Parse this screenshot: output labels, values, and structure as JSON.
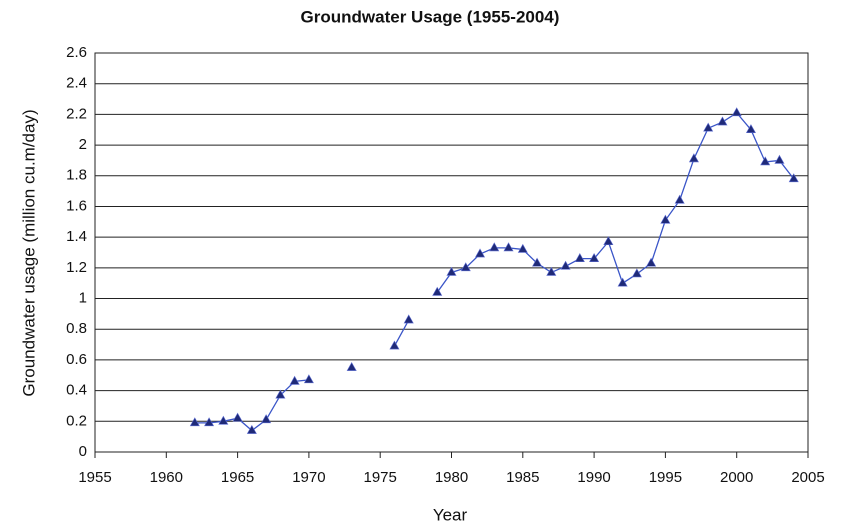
{
  "chart_data": {
    "type": "line",
    "title": "Groundwater Usage (1955-2004)",
    "x_label": "Year",
    "y_label": "Groundwater usage (million cu.m/day)",
    "x": [
      1962,
      1963,
      1964,
      1965,
      1966,
      1967,
      1968,
      1969,
      1970,
      1971,
      1972,
      1973,
      1974,
      1975,
      1976,
      1977,
      1978,
      1979,
      1980,
      1981,
      1982,
      1983,
      1984,
      1985,
      1986,
      1987,
      1988,
      1989,
      1990,
      1991,
      1992,
      1993,
      1994,
      1995,
      1996,
      1997,
      1998,
      1999,
      2000,
      2001,
      2002,
      2003,
      2004
    ],
    "series": [
      {
        "name": "Groundwater usage",
        "color": "#3a55c8",
        "marker_color": "#1f2a78",
        "values": [
          0.19,
          0.19,
          0.2,
          0.22,
          0.14,
          0.21,
          0.37,
          0.46,
          0.47,
          null,
          null,
          0.55,
          null,
          null,
          0.69,
          0.86,
          null,
          1.04,
          1.17,
          1.2,
          1.29,
          1.33,
          1.33,
          1.32,
          1.23,
          1.17,
          1.21,
          1.26,
          1.26,
          1.37,
          1.1,
          1.16,
          1.23,
          1.51,
          1.64,
          1.91,
          2.11,
          2.15,
          2.21,
          2.1,
          1.89,
          1.9,
          1.78
        ]
      }
    ],
    "xlim": [
      1955,
      2005
    ],
    "xticks": [
      1955,
      1960,
      1965,
      1970,
      1975,
      1980,
      1985,
      1990,
      1995,
      2000,
      2005
    ],
    "ylim": [
      0,
      2.6
    ],
    "yticks": [
      0,
      0.2,
      0.4,
      0.6,
      0.8,
      1,
      1.2,
      1.4,
      1.6,
      1.8,
      2,
      2.2,
      2.4,
      2.6
    ],
    "grid": true
  }
}
